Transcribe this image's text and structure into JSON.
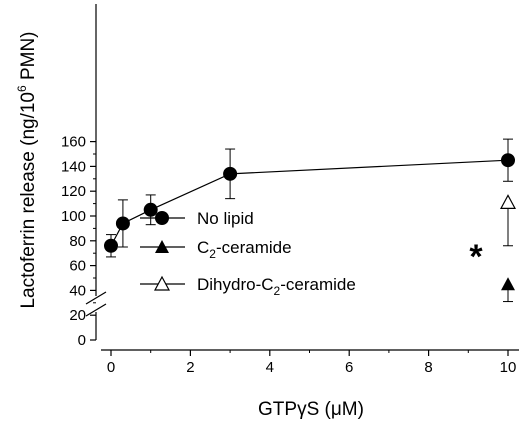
{
  "chart_data": {
    "type": "line",
    "xlabel": "GTPγS (μM)",
    "ylabel": "Lactoferrin release (ng/10⁶ PMN)",
    "xlim": [
      -0.5,
      10.5
    ],
    "ylim": [
      0,
      165
    ],
    "x_ticks": [
      "0",
      "2",
      "4",
      "6",
      "8",
      "10"
    ],
    "x_tick_values": [
      0,
      2,
      4,
      6,
      8,
      10
    ],
    "y_ticks": [
      "0",
      "20",
      "40",
      "60",
      "80",
      "100",
      "120",
      "140",
      "160"
    ],
    "y_tick_values": [
      0,
      20,
      40,
      60,
      80,
      100,
      120,
      140,
      160
    ],
    "axis_break": "y between 0 and 20",
    "grid": false,
    "legend_position": "center-left",
    "series": [
      {
        "name": "No lipid",
        "marker": "filled-circle",
        "connected": true,
        "points": [
          {
            "x": 0,
            "y": 76,
            "err_low": 9,
            "err_high": 9
          },
          {
            "x": 0.3,
            "y": 94,
            "err_low": 19,
            "err_high": 19
          },
          {
            "x": 1,
            "y": 105,
            "err_low": 12,
            "err_high": 12
          },
          {
            "x": 3,
            "y": 134,
            "err_low": 20,
            "err_high": 20
          },
          {
            "x": 10,
            "y": 145,
            "err_low": 17,
            "err_high": 17
          }
        ]
      },
      {
        "name": "C₂-ceramide",
        "name_parts": [
          "C",
          "2",
          "-ceramide"
        ],
        "marker": "filled-triangle",
        "connected": false,
        "points": [
          {
            "x": 10,
            "y": 45,
            "err_low": 14,
            "err_high": 0
          }
        ]
      },
      {
        "name": "Dihydro-C₂-ceramide",
        "name_parts": [
          "Dihydro-C",
          "2",
          "-ceramide"
        ],
        "marker": "open-triangle",
        "connected": false,
        "points": [
          {
            "x": 10,
            "y": 111,
            "err_low": 35,
            "err_high": 0
          }
        ]
      }
    ],
    "annotations": [
      {
        "text": "*",
        "x": 10,
        "y": 45,
        "placement": "left"
      }
    ]
  },
  "labels": {
    "ylabel_main": "Lactoferrin release (ng/10",
    "ylabel_sup": "6",
    "ylabel_tail": " PMN)",
    "xlabel": "GTPγS (μM)",
    "legend_1": "No lipid",
    "legend_2_a": "C",
    "legend_2_sub": "2",
    "legend_2_b": "-ceramide",
    "legend_3_a": "Dihydro-C",
    "legend_3_sub": "2",
    "legend_3_b": "-ceramide",
    "star": "*"
  }
}
